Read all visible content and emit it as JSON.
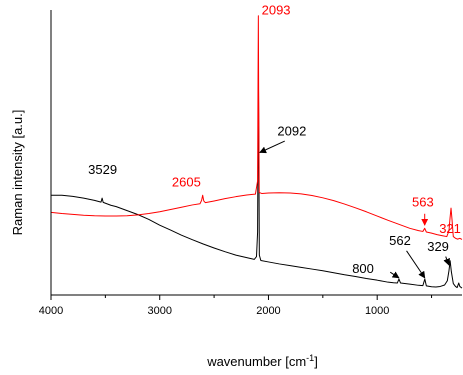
{
  "colors": {
    "black": "#000000",
    "red": "#ff0000"
  },
  "chart_data": {
    "type": "line",
    "title": "",
    "xlabel": "wavenumber [cm",
    "xlabel_sup": "-1",
    "xlabel_tail": "]",
    "ylabel": "Raman intensity [a.u.]",
    "x_reversed": true,
    "xlim": [
      4000,
      220
    ],
    "ylim": [
      0,
      100
    ],
    "y_ticks_shown": false,
    "x_ticks": [
      {
        "value": 4000,
        "label": "4000"
      },
      {
        "value": 3000,
        "label": "3000"
      },
      {
        "value": 2000,
        "label": "2000"
      },
      {
        "value": 1000,
        "label": "1000"
      }
    ],
    "series": [
      {
        "color": "#000000",
        "points": [
          [
            4000,
            35.0
          ],
          [
            3900,
            35.0
          ],
          [
            3800,
            34.6
          ],
          [
            3700,
            34.0
          ],
          [
            3600,
            33.2
          ],
          [
            3540,
            32.6
          ],
          [
            3530,
            34.0
          ],
          [
            3520,
            32.5
          ],
          [
            3450,
            31.5
          ],
          [
            3400,
            31.0
          ],
          [
            3300,
            29.6
          ],
          [
            3200,
            28.2
          ],
          [
            3100,
            26.5
          ],
          [
            3000,
            24.5
          ],
          [
            2900,
            22.8
          ],
          [
            2800,
            21.0
          ],
          [
            2700,
            19.4
          ],
          [
            2600,
            17.9
          ],
          [
            2500,
            16.5
          ],
          [
            2400,
            15.2
          ],
          [
            2300,
            14.0
          ],
          [
            2200,
            13.1
          ],
          [
            2130,
            12.5
          ],
          [
            2110,
            13.5
          ],
          [
            2100,
            22.0
          ],
          [
            2095,
            60.0
          ],
          [
            2092,
            75.0
          ],
          [
            2089,
            55.0
          ],
          [
            2084,
            14.0
          ],
          [
            2070,
            12.1
          ],
          [
            2000,
            11.6
          ],
          [
            1900,
            10.9
          ],
          [
            1800,
            10.3
          ],
          [
            1700,
            9.7
          ],
          [
            1600,
            9.1
          ],
          [
            1500,
            8.5
          ],
          [
            1400,
            7.8
          ],
          [
            1300,
            7.1
          ],
          [
            1200,
            6.5
          ],
          [
            1100,
            5.8
          ],
          [
            1000,
            5.2
          ],
          [
            900,
            4.5
          ],
          [
            850,
            4.3
          ],
          [
            815,
            4.2
          ],
          [
            800,
            5.6
          ],
          [
            785,
            4.2
          ],
          [
            700,
            3.8
          ],
          [
            620,
            3.4
          ],
          [
            580,
            3.3
          ],
          [
            562,
            5.6
          ],
          [
            548,
            3.2
          ],
          [
            500,
            2.9
          ],
          [
            460,
            2.8
          ],
          [
            420,
            3.0
          ],
          [
            380,
            3.5
          ],
          [
            355,
            5.0
          ],
          [
            340,
            8.5
          ],
          [
            329,
            12.0
          ],
          [
            318,
            8.2
          ],
          [
            300,
            4.0
          ],
          [
            280,
            3.0
          ],
          [
            265,
            2.6
          ],
          [
            250,
            4.2
          ],
          [
            240,
            3.0
          ],
          [
            220,
            2.4
          ]
        ]
      },
      {
        "color": "#ff0000",
        "points": [
          [
            4000,
            29.0
          ],
          [
            3900,
            28.6
          ],
          [
            3800,
            28.3
          ],
          [
            3700,
            28.0
          ],
          [
            3600,
            27.8
          ],
          [
            3500,
            27.7
          ],
          [
            3400,
            27.7
          ],
          [
            3300,
            27.8
          ],
          [
            3200,
            28.1
          ],
          [
            3100,
            28.6
          ],
          [
            3000,
            29.2
          ],
          [
            2900,
            30.0
          ],
          [
            2800,
            30.8
          ],
          [
            2700,
            31.6
          ],
          [
            2630,
            32.0
          ],
          [
            2615,
            33.2
          ],
          [
            2605,
            35.0
          ],
          [
            2595,
            33.0
          ],
          [
            2580,
            32.4
          ],
          [
            2500,
            33.0
          ],
          [
            2400,
            33.8
          ],
          [
            2300,
            34.5
          ],
          [
            2200,
            35.1
          ],
          [
            2120,
            35.4
          ],
          [
            2100,
            40.0
          ],
          [
            2096,
            75.0
          ],
          [
            2093,
            98.0
          ],
          [
            2090,
            70.0
          ],
          [
            2085,
            36.0
          ],
          [
            2060,
            35.6
          ],
          [
            2000,
            35.8
          ],
          [
            1900,
            35.9
          ],
          [
            1800,
            35.8
          ],
          [
            1700,
            35.5
          ],
          [
            1600,
            34.9
          ],
          [
            1500,
            34.1
          ],
          [
            1400,
            33.1
          ],
          [
            1300,
            31.9
          ],
          [
            1200,
            30.6
          ],
          [
            1100,
            29.2
          ],
          [
            1000,
            27.7
          ],
          [
            900,
            26.2
          ],
          [
            800,
            24.8
          ],
          [
            700,
            23.4
          ],
          [
            620,
            22.6
          ],
          [
            580,
            22.3
          ],
          [
            563,
            23.4
          ],
          [
            548,
            22.1
          ],
          [
            500,
            21.7
          ],
          [
            450,
            21.2
          ],
          [
            400,
            20.8
          ],
          [
            360,
            20.5
          ],
          [
            340,
            22.5
          ],
          [
            330,
            27.0
          ],
          [
            321,
            30.5
          ],
          [
            312,
            26.5
          ],
          [
            300,
            20.5
          ],
          [
            280,
            19.9
          ],
          [
            260,
            19.6
          ],
          [
            240,
            19.9
          ],
          [
            220,
            19.5
          ]
        ]
      }
    ],
    "annotations": [
      {
        "label": "3529",
        "color": "#000000",
        "x": 3529,
        "y": 34.2,
        "text_x": 3525,
        "text_y": 42.5,
        "arrow": false
      },
      {
        "label": "2605",
        "color": "#ff0000",
        "x": 2605,
        "y": 35.2,
        "text_x": 2755,
        "text_y": 38.0,
        "arrow": false
      },
      {
        "label": "2093",
        "color": "#ff0000",
        "x": 2093,
        "y": 98.0,
        "text_x": 1930,
        "text_y": 98.5,
        "arrow": false
      },
      {
        "label": "2092",
        "color": "#000000",
        "x": 2080,
        "y": 50.0,
        "text_x": 1785,
        "text_y": 56.0,
        "arrow": true,
        "from_x": 1850,
        "from_y": 54.0
      },
      {
        "label": "563",
        "color": "#ff0000",
        "x": 563,
        "y": 24.5,
        "text_x": 580,
        "text_y": 31.0,
        "arrow": true,
        "from_x": 563,
        "from_y": 28.5
      },
      {
        "label": "321",
        "color": "#ff0000",
        "x": 321,
        "y": 31.0,
        "text_x": 330,
        "text_y": 21.8,
        "arrow": false
      },
      {
        "label": "562",
        "color": "#000000",
        "x": 562,
        "y": 6.0,
        "text_x": 790,
        "text_y": 17.5,
        "arrow": true,
        "from_x": 730,
        "from_y": 15.5
      },
      {
        "label": "329",
        "color": "#000000",
        "x": 340,
        "y": 10.5,
        "text_x": 440,
        "text_y": 15.5,
        "arrow": true,
        "from_x": 370,
        "from_y": 13.5
      },
      {
        "label": "800",
        "color": "#000000",
        "x": 800,
        "y": 6.0,
        "text_x": 1130,
        "text_y": 7.7,
        "arrow": true,
        "from_x": 880,
        "from_y": 8.0
      }
    ]
  }
}
